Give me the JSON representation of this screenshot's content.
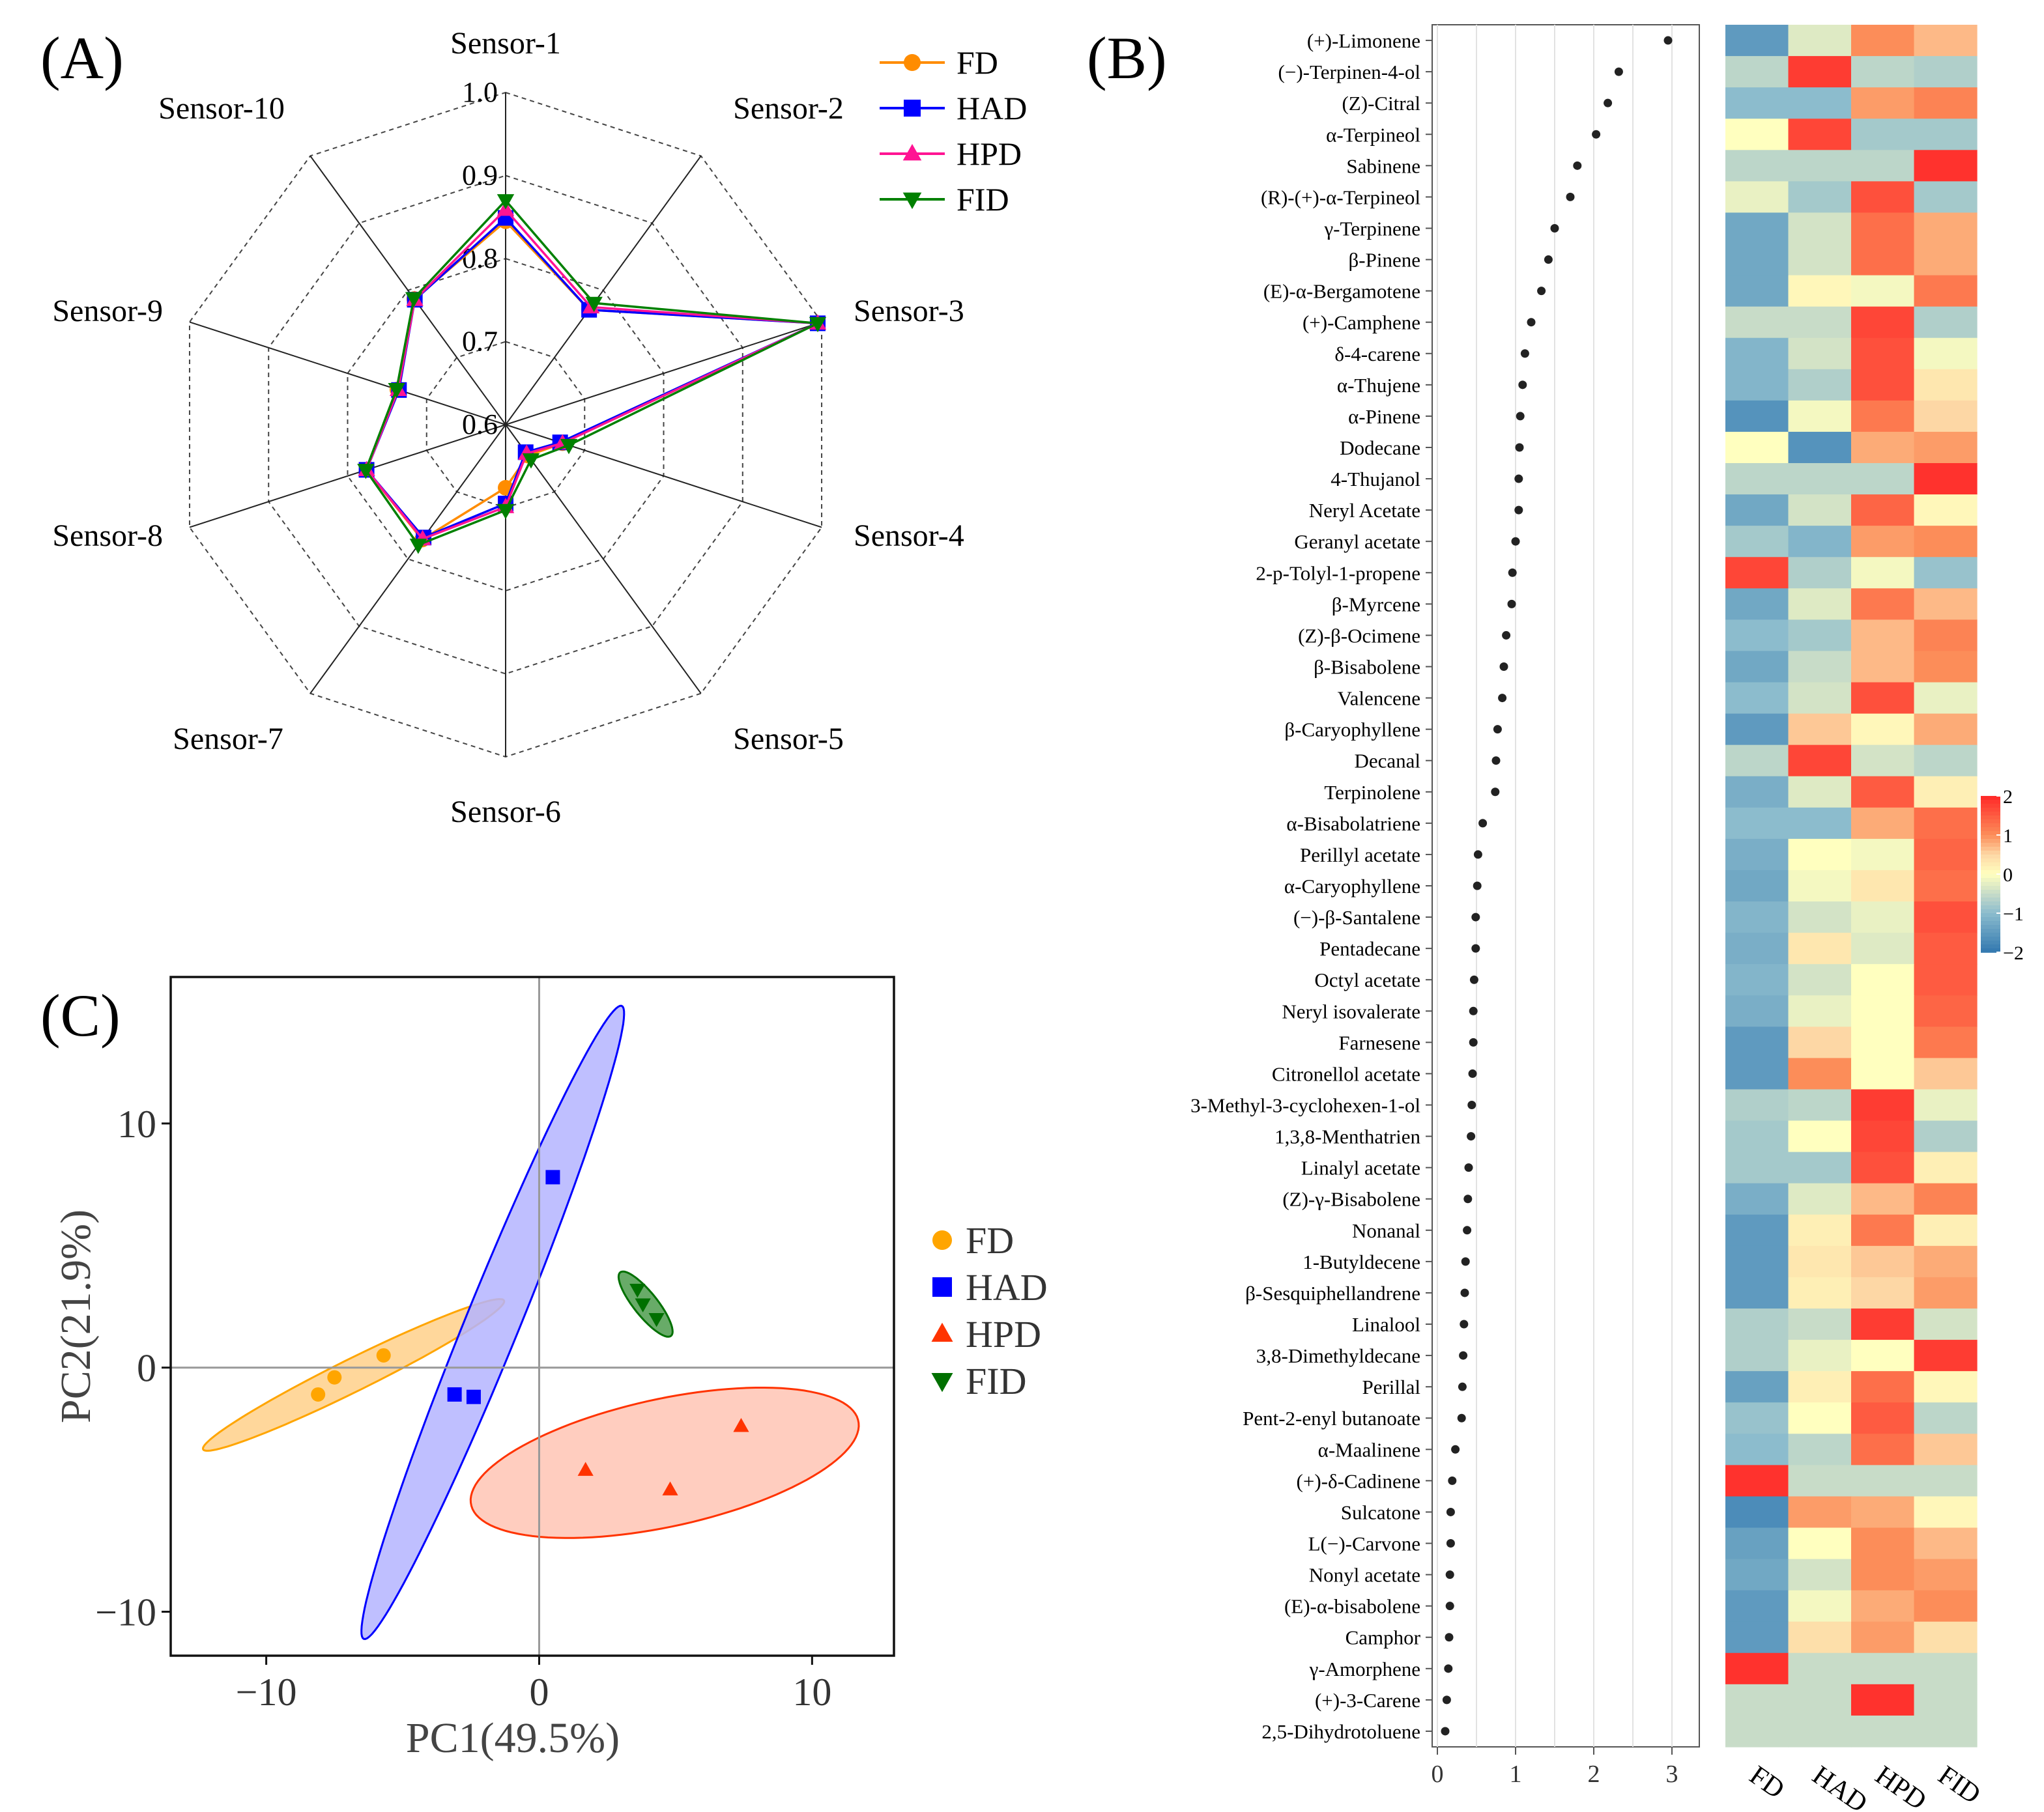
{
  "chart_data": [
    {
      "panel": "(A)",
      "type": "radar",
      "axes": [
        "Sensor-1",
        "Sensor-2",
        "Sensor-3",
        "Sensor-4",
        "Sensor-5",
        "Sensor-6",
        "Sensor-7",
        "Sensor-8",
        "Sensor-9",
        "Sensor-10"
      ],
      "rmin": 0.6,
      "rmax": 1.0,
      "ticks": [
        0.6,
        0.7,
        0.8,
        0.9,
        1.0
      ],
      "series": [
        {
          "name": "FD",
          "color": "#ff8c00",
          "marker": "circle",
          "values": [
            0.845,
            0.771,
            0.995,
            0.672,
            0.646,
            0.676,
            0.771,
            0.776,
            0.737,
            0.787
          ]
        },
        {
          "name": "HAD",
          "color": "#0000ff",
          "marker": "square",
          "values": [
            0.849,
            0.771,
            0.995,
            0.669,
            0.641,
            0.695,
            0.768,
            0.776,
            0.735,
            0.786
          ]
        },
        {
          "name": "HPD",
          "color": "#ff1493",
          "marker": "triangle",
          "values": [
            0.859,
            0.775,
            0.995,
            0.672,
            0.643,
            0.699,
            0.77,
            0.776,
            0.736,
            0.786
          ]
        },
        {
          "name": "FID",
          "color": "#008000",
          "marker": "triangle-down",
          "values": [
            0.87,
            0.781,
            0.995,
            0.68,
            0.652,
            0.703,
            0.779,
            0.777,
            0.738,
            0.788
          ]
        }
      ]
    },
    {
      "panel": "(B)",
      "type": "dot+heatmap",
      "x_ticks": [
        "0",
        "1",
        "2",
        "3"
      ],
      "xlim": [
        0,
        3.3
      ],
      "columns": [
        "FD",
        "HAD",
        "HPD",
        "FID"
      ],
      "colorbar": {
        "ticks": [
          "2",
          "1",
          "0",
          "−1",
          "−2"
        ],
        "min": -2,
        "max": 2
      },
      "compounds": [
        "(+)-Limonene",
        "(−)-Terpinen-4-ol",
        "(Z)-Citral",
        "α-Terpineol",
        "Sabinene",
        "(R)-(+)-α-Terpineol",
        "γ-Terpinene",
        "β-Pinene",
        "(E)-α-Bergamotene",
        "(+)-Camphene",
        "δ-4-carene",
        "α-Thujene",
        "α-Pinene",
        "Dodecane",
        "4-Thujanol",
        "Neryl Acetate",
        "Geranyl acetate",
        "2-p-Tolyl-1-propene",
        "β-Myrcene",
        "(Z)-β-Ocimene",
        "β-Bisabolene",
        "Valencene",
        "β-Caryophyllene",
        "Decanal",
        "Terpinolene",
        "α-Bisabolatriene",
        "Perillyl acetate",
        "α-Caryophyllene",
        "(−)-β-Santalene",
        "Pentadecane",
        "Octyl acetate",
        "Neryl isovalerate",
        "Farnesene",
        "Citronellol acetate",
        "3-Methyl-3-cyclohexen-1-ol",
        "1,3,8-Menthatrien",
        "Linalyl acetate",
        "(Z)-γ-Bisabolene",
        "Nonanal",
        "1-Butyldecene",
        "β-Sesquiphellandrene",
        "Linalool",
        "3,8-Dimethyldecane",
        "Perillal",
        "Pent-2-enyl butanoate",
        "α-Maalinene",
        "(+)-δ-Cadinene",
        "Sulcatone",
        "L(−)-Carvone",
        "Nonyl acetate",
        "(E)-α-bisabolene",
        "Camphor",
        "γ-Amorphene",
        "(+)-3-Carene",
        "2,5-Dihydrotoluene"
      ],
      "importance": [
        2.95,
        2.32,
        2.18,
        2.03,
        1.79,
        1.7,
        1.5,
        1.42,
        1.33,
        1.2,
        1.12,
        1.09,
        1.06,
        1.05,
        1.04,
        1.04,
        1.0,
        0.96,
        0.95,
        0.88,
        0.85,
        0.83,
        0.77,
        0.75,
        0.74,
        0.58,
        0.52,
        0.51,
        0.49,
        0.49,
        0.47,
        0.46,
        0.46,
        0.45,
        0.44,
        0.43,
        0.4,
        0.39,
        0.38,
        0.36,
        0.35,
        0.34,
        0.33,
        0.32,
        0.31,
        0.23,
        0.19,
        0.17,
        0.17,
        0.16,
        0.16,
        0.15,
        0.14,
        0.12,
        0.1
      ],
      "z": [
        [
          -1.5,
          -0.3,
          1.0,
          0.7
        ],
        [
          -0.6,
          1.8,
          -0.6,
          -0.7
        ],
        [
          -1.0,
          -1.0,
          0.9,
          1.1
        ],
        [
          0.0,
          1.7,
          -0.8,
          -0.8
        ],
        [
          -0.6,
          -0.6,
          -0.6,
          1.9
        ],
        [
          -0.2,
          -0.8,
          1.6,
          -0.8
        ],
        [
          -1.3,
          -0.4,
          1.3,
          0.8
        ],
        [
          -1.3,
          -0.4,
          1.3,
          0.8
        ],
        [
          -1.3,
          0.1,
          -0.1,
          1.2
        ],
        [
          -0.5,
          -0.5,
          1.7,
          -0.7
        ],
        [
          -1.1,
          -0.4,
          1.6,
          -0.1
        ],
        [
          -1.1,
          -0.7,
          1.6,
          0.3
        ],
        [
          -1.6,
          -0.1,
          1.2,
          0.5
        ],
        [
          0.0,
          -1.6,
          0.8,
          0.9
        ],
        [
          -0.6,
          -0.6,
          -0.6,
          1.9
        ],
        [
          -1.3,
          -0.4,
          1.4,
          0.1
        ],
        [
          -0.8,
          -1.1,
          0.9,
          1.0
        ],
        [
          1.7,
          -0.7,
          -0.1,
          -0.9
        ],
        [
          -1.3,
          -0.3,
          1.2,
          0.7
        ],
        [
          -1.0,
          -0.8,
          0.7,
          1.1
        ],
        [
          -1.3,
          -0.5,
          0.7,
          1.0
        ],
        [
          -1.0,
          -0.4,
          1.6,
          -0.2
        ],
        [
          -1.5,
          0.6,
          0.1,
          0.8
        ],
        [
          -0.6,
          1.7,
          -0.4,
          -0.6
        ],
        [
          -1.2,
          -0.3,
          1.5,
          0.2
        ],
        [
          -1.0,
          -1.0,
          0.8,
          1.3
        ],
        [
          -1.2,
          0.0,
          -0.1,
          1.4
        ],
        [
          -1.3,
          -0.1,
          0.3,
          1.3
        ],
        [
          -1.1,
          -0.4,
          -0.2,
          1.6
        ],
        [
          -1.2,
          0.3,
          -0.3,
          1.5
        ],
        [
          -1.1,
          -0.4,
          0.0,
          1.5
        ],
        [
          -1.2,
          -0.2,
          0.0,
          1.4
        ],
        [
          -1.5,
          0.5,
          0.0,
          1.2
        ],
        [
          -1.5,
          1.0,
          0.0,
          0.6
        ],
        [
          -0.7,
          -0.6,
          1.8,
          -0.2
        ],
        [
          -0.8,
          0.0,
          1.7,
          -0.7
        ],
        [
          -0.8,
          -0.8,
          1.6,
          0.2
        ],
        [
          -1.2,
          -0.3,
          0.7,
          1.1
        ],
        [
          -1.5,
          0.2,
          1.2,
          0.2
        ],
        [
          -1.5,
          0.3,
          0.6,
          0.8
        ],
        [
          -1.5,
          0.2,
          0.5,
          0.9
        ],
        [
          -0.7,
          -0.5,
          1.8,
          -0.4
        ],
        [
          -0.7,
          -0.2,
          0.0,
          1.8
        ],
        [
          -1.4,
          0.2,
          1.3,
          0.1
        ],
        [
          -0.9,
          0.0,
          1.5,
          -0.6
        ],
        [
          -1.0,
          -0.6,
          1.3,
          0.6
        ],
        [
          1.9,
          -0.5,
          -0.5,
          -0.5
        ],
        [
          -1.7,
          0.9,
          0.8,
          0.1
        ],
        [
          -1.4,
          0.0,
          1.0,
          0.7
        ],
        [
          -1.3,
          -0.4,
          1.0,
          0.9
        ],
        [
          -1.5,
          -0.1,
          0.8,
          1.0
        ],
        [
          -1.5,
          0.4,
          0.9,
          0.4
        ],
        [
          1.9,
          -0.5,
          -0.5,
          -0.5
        ],
        [
          -0.5,
          -0.5,
          1.9,
          -0.5
        ],
        [
          -0.5,
          -0.5,
          -0.5,
          -0.5
        ]
      ]
    },
    {
      "panel": "(C)",
      "type": "scatter",
      "xlabel": "PC1(49.5%)",
      "ylabel": "PC2(21.9%)",
      "xlim": [
        -13.5,
        13.0
      ],
      "ylim": [
        -11.8,
        16.0
      ],
      "x_ticks": [
        -10,
        0,
        10
      ],
      "x_tick_labels": [
        "−10",
        "0",
        "10"
      ],
      "y_ticks": [
        -10,
        0,
        10
      ],
      "y_tick_labels": [
        "−10",
        "0",
        "10"
      ],
      "series": [
        {
          "name": "FD",
          "color": "#ffa500",
          "marker": "circle",
          "points": [
            [
              -8.1,
              -1.1
            ],
            [
              -7.5,
              -0.4
            ],
            [
              -5.7,
              0.5
            ]
          ],
          "ellipse": {
            "cx": -6.8,
            "cy": -0.3,
            "rx": 6.3,
            "ry": 0.65,
            "angle_deg": 29,
            "fill": "#ffd08a",
            "stroke": "#ffa500"
          }
        },
        {
          "name": "HAD",
          "color": "#0000ff",
          "marker": "square",
          "points": [
            [
              0.5,
              7.8
            ],
            [
              -3.1,
              -1.1
            ],
            [
              -2.4,
              -1.2
            ]
          ],
          "ellipse": {
            "cx": -1.7,
            "cy": 1.85,
            "rx": 13.8,
            "ry": 1.0,
            "angle_deg": 70,
            "fill": "#b4b4ff",
            "stroke": "#0000ff"
          }
        },
        {
          "name": "HPD",
          "color": "#ff3300",
          "marker": "triangle",
          "points": [
            [
              1.7,
              -4.2
            ],
            [
              7.4,
              -2.4
            ],
            [
              4.8,
              -5.0
            ]
          ],
          "ellipse": {
            "cx": 4.6,
            "cy": -3.9,
            "rx": 7.3,
            "ry": 2.6,
            "angle_deg": 14,
            "fill": "#ffc4b4",
            "stroke": "#ff3300"
          }
        },
        {
          "name": "FID",
          "color": "#007000",
          "marker": "triangle-down",
          "points": [
            [
              3.6,
              3.2
            ],
            [
              3.8,
              2.6
            ],
            [
              4.3,
              2.0
            ]
          ],
          "ellipse": {
            "cx": 3.9,
            "cy": 2.6,
            "rx": 1.6,
            "ry": 0.45,
            "angle_deg": -55,
            "fill": "#4d9c4d",
            "stroke": "#007000"
          }
        }
      ]
    }
  ]
}
